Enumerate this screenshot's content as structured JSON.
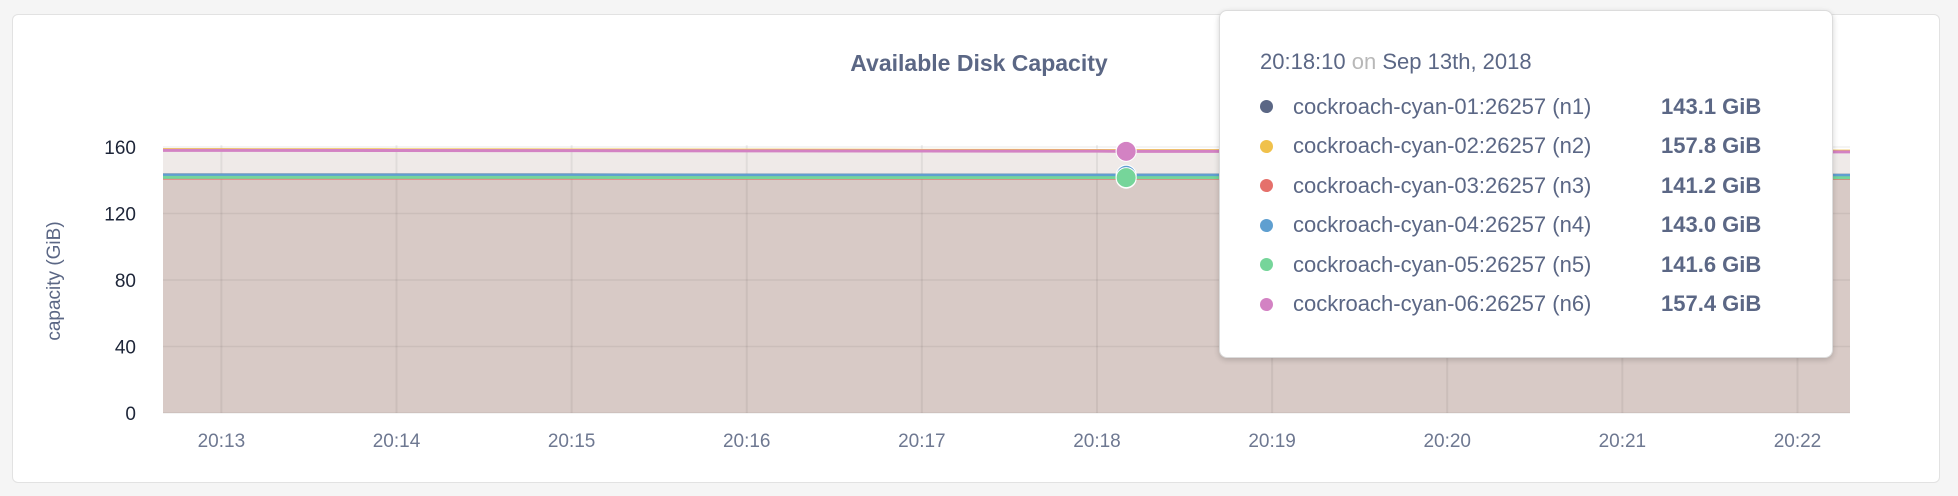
{
  "chart_data": {
    "type": "area",
    "title": "Available Disk Capacity",
    "ylabel": "capacity (GiB)",
    "ylim": [
      0,
      160
    ],
    "yticks": [
      "0",
      "40",
      "80",
      "120",
      "160"
    ],
    "xticks": [
      "20:13",
      "20:14",
      "20:15",
      "20:16",
      "20:17",
      "20:18",
      "20:19",
      "20:20",
      "20:21",
      "20:22"
    ],
    "xrange": [
      "20:12:40",
      "20:22:18"
    ],
    "grid": true,
    "x": [
      "20:12:40",
      "20:13",
      "20:14",
      "20:15",
      "20:16",
      "20:17",
      "20:18",
      "20:18:10",
      "20:19",
      "20:20",
      "20:21",
      "20:22",
      "20:22:18"
    ],
    "series": [
      {
        "name": "cockroach-cyan-01:26257 (n1)",
        "color": "#5b6785",
        "values": [
          143.2,
          143.2,
          143.2,
          143.2,
          143.1,
          143.1,
          143.1,
          143.1,
          143.1,
          143.1,
          143.0,
          143.0,
          143.0
        ]
      },
      {
        "name": "cockroach-cyan-02:26257 (n2)",
        "color": "#f0c14b",
        "values": [
          158.4,
          158.4,
          158.3,
          158.2,
          158.1,
          158.0,
          157.9,
          157.8,
          157.8,
          157.7,
          157.6,
          157.5,
          157.5
        ]
      },
      {
        "name": "cockroach-cyan-03:26257 (n3)",
        "color": "#e5706b",
        "values": [
          141.3,
          141.3,
          141.3,
          141.3,
          141.2,
          141.2,
          141.2,
          141.2,
          141.2,
          141.2,
          141.1,
          141.1,
          141.1
        ]
      },
      {
        "name": "cockroach-cyan-04:26257 (n4)",
        "color": "#5f9fd0",
        "values": [
          143.1,
          143.1,
          143.1,
          143.1,
          143.0,
          143.0,
          143.0,
          143.0,
          143.0,
          143.0,
          142.9,
          142.9,
          142.9
        ]
      },
      {
        "name": "cockroach-cyan-05:26257 (n5)",
        "color": "#76d59a",
        "values": [
          141.7,
          141.7,
          141.7,
          141.7,
          141.6,
          141.6,
          141.6,
          141.6,
          141.6,
          141.6,
          141.5,
          141.5,
          141.5
        ]
      },
      {
        "name": "cockroach-cyan-06:26257 (n6)",
        "color": "#d382c3",
        "values": [
          158.0,
          158.0,
          157.9,
          157.8,
          157.7,
          157.6,
          157.5,
          157.4,
          157.4,
          157.3,
          157.2,
          157.1,
          157.1
        ]
      }
    ],
    "hover": {
      "time": "20:18:10",
      "on": "on",
      "date": "Sep 13th, 2018",
      "values": [
        "143.1 GiB",
        "157.8 GiB",
        "141.2 GiB",
        "143.0 GiB",
        "141.6 GiB",
        "157.4 GiB"
      ]
    }
  }
}
